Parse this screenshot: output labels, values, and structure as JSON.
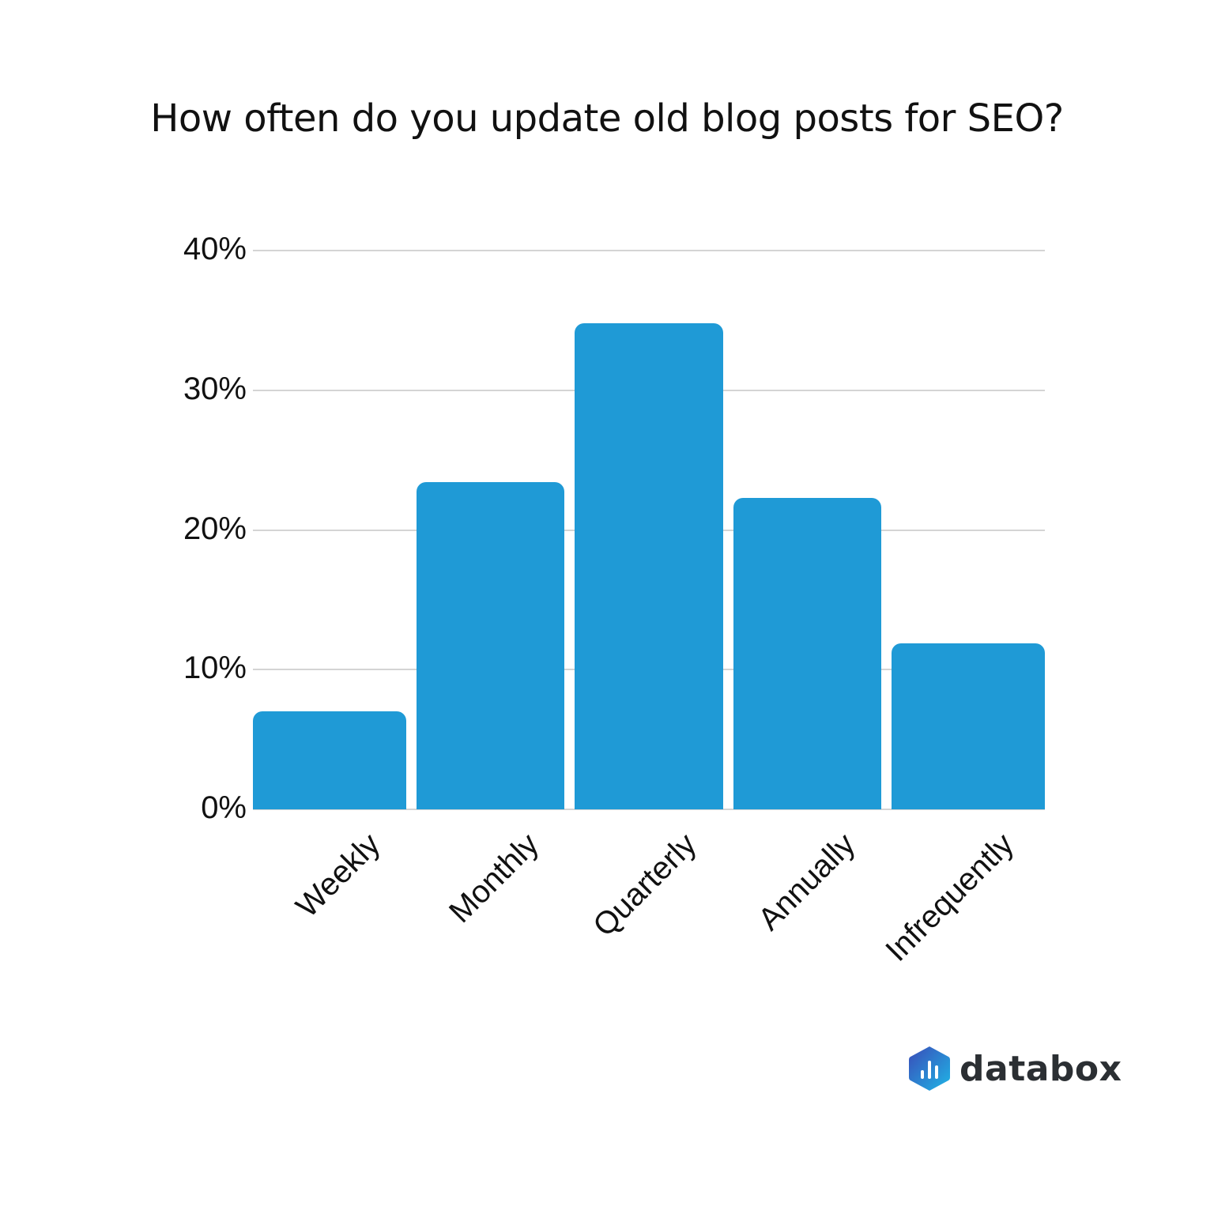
{
  "title": "How often do you update old blog posts for SEO?",
  "colors": {
    "bar": "#1f9ad6",
    "grid": "#d4d4d4",
    "text": "#111111"
  },
  "y_ticks": [
    "0%",
    "10%",
    "20%",
    "30%",
    "40%"
  ],
  "x_labels": [
    "Weekly",
    "Monthly",
    "Quarterly",
    "Annually",
    "Infrequently"
  ],
  "logo": {
    "text": "databox",
    "icon": "databox-hexagon-bars-icon"
  },
  "chart_data": {
    "type": "bar",
    "title": "How often do you update old blog posts for SEO?",
    "categories": [
      "Weekly",
      "Monthly",
      "Quarterly",
      "Annually",
      "Infrequently"
    ],
    "values": [
      7.0,
      23.4,
      34.8,
      22.3,
      11.9
    ],
    "xlabel": "",
    "ylabel": "",
    "ylim": [
      0,
      40
    ],
    "y_tick_labels": [
      "0%",
      "10%",
      "20%",
      "30%",
      "40%"
    ],
    "grid": true,
    "legend": null,
    "unit": "%"
  }
}
